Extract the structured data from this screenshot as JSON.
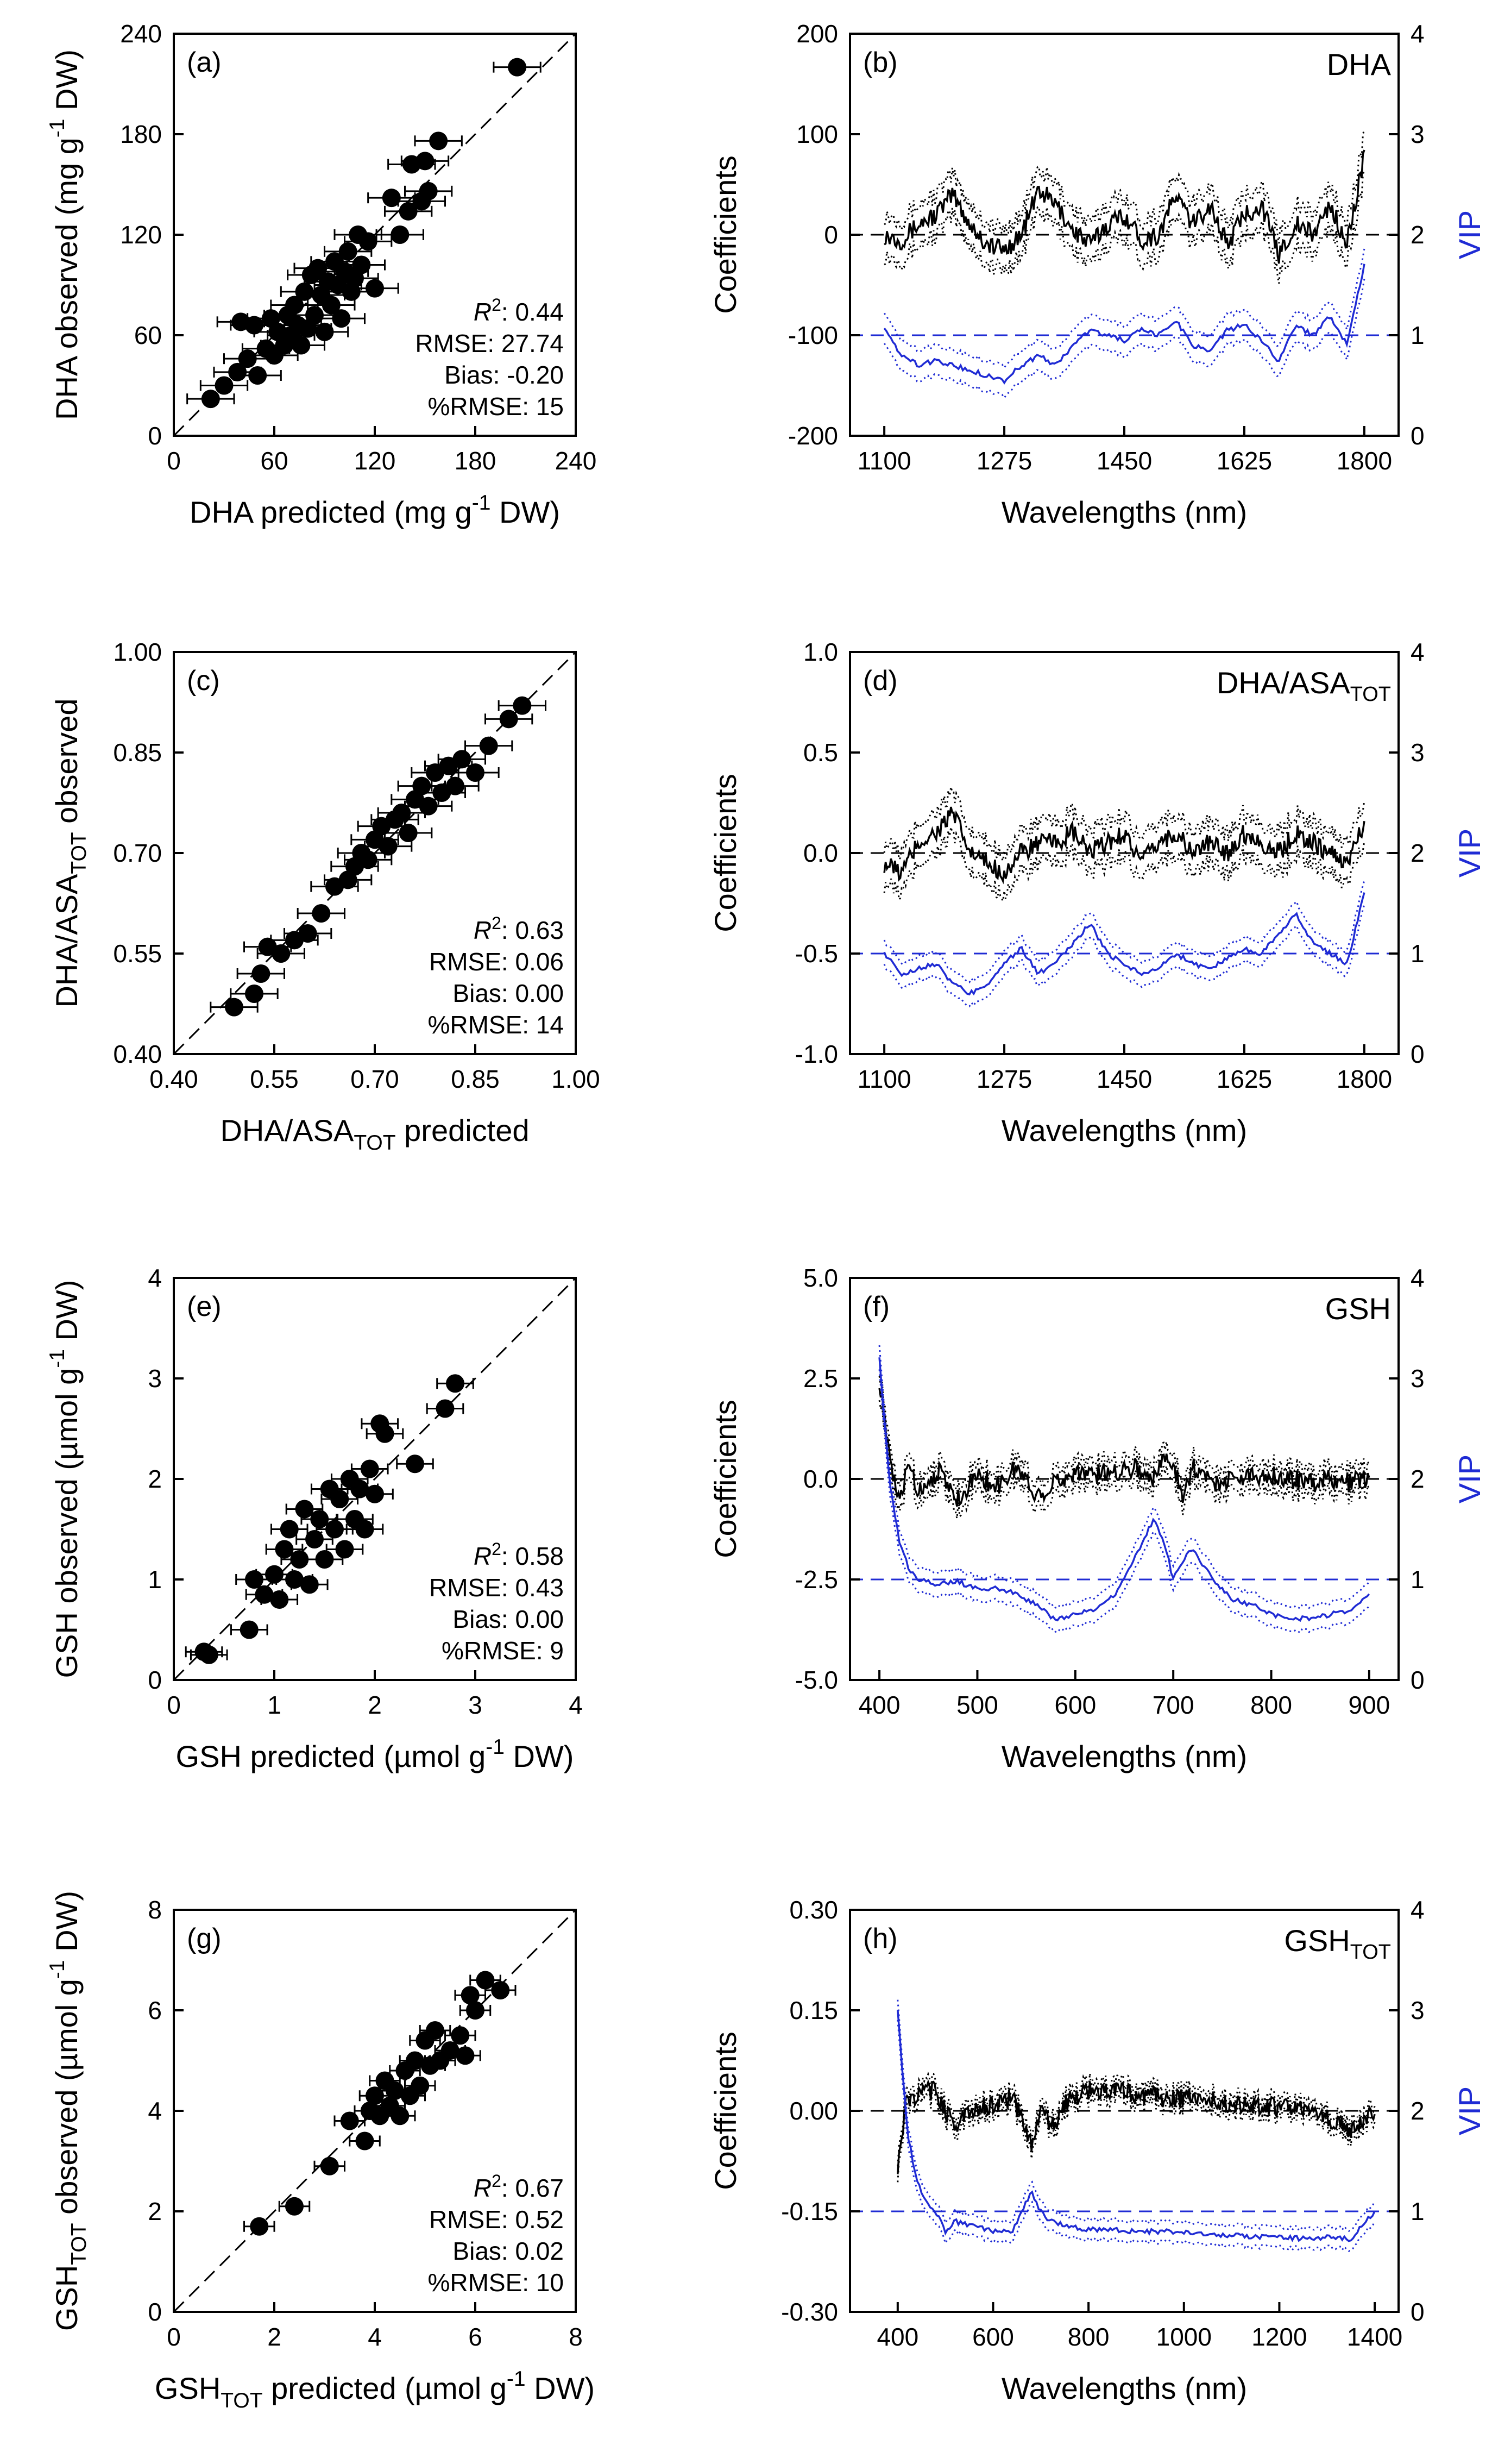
{
  "chart_data": [
    {
      "id": "a",
      "type": "scatter",
      "label": "(a)",
      "xlabel": {
        "main": "DHA predicted (mg g",
        "sup": "-1",
        "tail": " DW)"
      },
      "ylabel": {
        "main": "DHA observed (mg g",
        "sup": "-1",
        "tail": " DW)"
      },
      "xlim": [
        0,
        240
      ],
      "ylim": [
        0,
        240
      ],
      "xticks": [
        "0",
        "60",
        "120",
        "180",
        "240"
      ],
      "yticks": [
        "0",
        "60",
        "120",
        "180",
        "240"
      ],
      "stats": [
        "R2: 0.44",
        "RMSE: 27.74",
        "Bias: -0.20",
        "%RMSE: 15"
      ],
      "points": [
        [
          22,
          22
        ],
        [
          30,
          30
        ],
        [
          38,
          38
        ],
        [
          40,
          68
        ],
        [
          44,
          46
        ],
        [
          48,
          66
        ],
        [
          50,
          36
        ],
        [
          55,
          52
        ],
        [
          58,
          70
        ],
        [
          60,
          48
        ],
        [
          62,
          62
        ],
        [
          66,
          54
        ],
        [
          68,
          72
        ],
        [
          70,
          60
        ],
        [
          72,
          78
        ],
        [
          74,
          66
        ],
        [
          76,
          54
        ],
        [
          78,
          86
        ],
        [
          80,
          64
        ],
        [
          82,
          96
        ],
        [
          84,
          72
        ],
        [
          86,
          100
        ],
        [
          88,
          84
        ],
        [
          90,
          62
        ],
        [
          92,
          92
        ],
        [
          94,
          78
        ],
        [
          96,
          104
        ],
        [
          98,
          90
        ],
        [
          100,
          70
        ],
        [
          102,
          98
        ],
        [
          104,
          110
        ],
        [
          106,
          86
        ],
        [
          108,
          94
        ],
        [
          110,
          120
        ],
        [
          112,
          102
        ],
        [
          116,
          116
        ],
        [
          120,
          88
        ],
        [
          130,
          142
        ],
        [
          135,
          120
        ],
        [
          140,
          134
        ],
        [
          142,
          162
        ],
        [
          148,
          140
        ],
        [
          150,
          164
        ],
        [
          152,
          146
        ],
        [
          158,
          176
        ],
        [
          205,
          220
        ]
      ],
      "xerr": 14
    },
    {
      "id": "b",
      "type": "line",
      "label": "(b)",
      "name": {
        "main": "DHA",
        "sub": ""
      },
      "xlabel": "Wavelengths (nm)",
      "ylabel": "Coefficients",
      "y2label": "VIP",
      "xlim": [
        1050,
        1850
      ],
      "ylim": [
        -200,
        200
      ],
      "y2lim": [
        0,
        4
      ],
      "xticks": [
        "1100",
        "1275",
        "1450",
        "1625",
        "1800"
      ],
      "yticks": [
        "-200",
        "-100",
        "0",
        "100",
        "200"
      ],
      "y2ticks": [
        "0",
        "1",
        "2",
        "3",
        "4"
      ],
      "x": [
        1100,
        1125,
        1150,
        1175,
        1200,
        1225,
        1250,
        1275,
        1300,
        1325,
        1350,
        1375,
        1400,
        1425,
        1450,
        1475,
        1500,
        1525,
        1550,
        1575,
        1600,
        1625,
        1650,
        1675,
        1700,
        1725,
        1750,
        1775,
        1800
      ],
      "series": [
        {
          "name": "Coefficients",
          "axis": "left",
          "values": [
            0,
            -5,
            10,
            20,
            40,
            10,
            -10,
            -15,
            0,
            45,
            30,
            5,
            -10,
            10,
            20,
            -5,
            0,
            40,
            10,
            30,
            -10,
            20,
            30,
            -20,
            10,
            0,
            30,
            -10,
            80
          ],
          "band": 20
        },
        {
          "name": "VIP",
          "axis": "right",
          "values": [
            1.05,
            0.8,
            0.7,
            0.75,
            0.7,
            0.65,
            0.6,
            0.55,
            0.7,
            0.8,
            0.7,
            0.9,
            1.05,
            1.0,
            0.95,
            1.05,
            1.0,
            1.15,
            0.9,
            0.85,
            1.05,
            1.1,
            0.95,
            0.75,
            1.1,
            1.0,
            1.2,
            0.9,
            1.7
          ],
          "band": 0.15
        }
      ],
      "refline_left": 0,
      "refline_right": 1
    },
    {
      "id": "c",
      "type": "scatter",
      "label": "(c)",
      "xlabel": {
        "main": "DHA/ASA",
        "sub": "TOT",
        "tail": " predicted"
      },
      "ylabel": {
        "main": "DHA/ASA",
        "sub": "TOT",
        "tail": " observed"
      },
      "xlim": [
        0.4,
        1.0
      ],
      "ylim": [
        0.4,
        1.0
      ],
      "xticks": [
        "0.40",
        "0.55",
        "0.70",
        "0.85",
        "1.00"
      ],
      "yticks": [
        "0.40",
        "0.55",
        "0.70",
        "0.85",
        "1.00"
      ],
      "stats": [
        "R2: 0.63",
        "RMSE: 0.06",
        "Bias: 0.00",
        "%RMSE: 14"
      ],
      "points": [
        [
          0.49,
          0.47
        ],
        [
          0.52,
          0.49
        ],
        [
          0.53,
          0.52
        ],
        [
          0.54,
          0.56
        ],
        [
          0.56,
          0.55
        ],
        [
          0.58,
          0.57
        ],
        [
          0.6,
          0.58
        ],
        [
          0.62,
          0.61
        ],
        [
          0.64,
          0.65
        ],
        [
          0.66,
          0.66
        ],
        [
          0.67,
          0.68
        ],
        [
          0.68,
          0.7
        ],
        [
          0.69,
          0.69
        ],
        [
          0.7,
          0.72
        ],
        [
          0.71,
          0.74
        ],
        [
          0.72,
          0.71
        ],
        [
          0.73,
          0.75
        ],
        [
          0.74,
          0.76
        ],
        [
          0.75,
          0.73
        ],
        [
          0.76,
          0.78
        ],
        [
          0.77,
          0.8
        ],
        [
          0.78,
          0.77
        ],
        [
          0.79,
          0.82
        ],
        [
          0.8,
          0.79
        ],
        [
          0.81,
          0.83
        ],
        [
          0.82,
          0.8
        ],
        [
          0.83,
          0.84
        ],
        [
          0.85,
          0.82
        ],
        [
          0.87,
          0.86
        ],
        [
          0.9,
          0.9
        ],
        [
          0.92,
          0.92
        ]
      ],
      "xerr": 0.035
    },
    {
      "id": "d",
      "type": "line",
      "label": "(d)",
      "name": {
        "main": "DHA/ASA",
        "sub": "TOT"
      },
      "xlabel": "Wavelengths (nm)",
      "ylabel": "Coefficients",
      "y2label": "VIP",
      "xlim": [
        1050,
        1850
      ],
      "ylim": [
        -1.0,
        1.0
      ],
      "y2lim": [
        0,
        4
      ],
      "xticks": [
        "1100",
        "1275",
        "1450",
        "1625",
        "1800"
      ],
      "yticks": [
        "-1.0",
        "-0.5",
        "0.0",
        "0.5",
        "1.0"
      ],
      "y2ticks": [
        "0",
        "1",
        "2",
        "3",
        "4"
      ],
      "x": [
        1100,
        1125,
        1150,
        1175,
        1200,
        1225,
        1250,
        1275,
        1300,
        1325,
        1350,
        1375,
        1400,
        1425,
        1450,
        1475,
        1500,
        1525,
        1550,
        1575,
        1600,
        1625,
        1650,
        1675,
        1700,
        1725,
        1750,
        1775,
        1800
      ],
      "series": [
        {
          "name": "Coefficients",
          "axis": "left",
          "values": [
            -0.05,
            -0.1,
            0.05,
            0.1,
            0.2,
            0.0,
            -0.05,
            -0.1,
            0.0,
            0.05,
            0.05,
            0.1,
            0.0,
            0.05,
            0.1,
            -0.05,
            0.05,
            0.1,
            0.0,
            0.05,
            0.0,
            0.1,
            0.05,
            0.0,
            0.1,
            0.05,
            0.0,
            -0.05,
            0.15
          ],
          "band": 0.1
        },
        {
          "name": "VIP",
          "axis": "right",
          "values": [
            1.0,
            0.8,
            0.85,
            0.9,
            0.7,
            0.6,
            0.7,
            0.9,
            1.05,
            0.8,
            0.9,
            1.1,
            1.3,
            1.0,
            0.9,
            0.8,
            0.85,
            1.0,
            0.9,
            0.85,
            0.95,
            1.05,
            1.0,
            1.2,
            1.4,
            1.1,
            1.0,
            0.9,
            1.6
          ],
          "band": 0.12
        }
      ],
      "refline_left": 0,
      "refline_right": 1
    },
    {
      "id": "e",
      "type": "scatter",
      "label": "(e)",
      "xlabel": {
        "main": "GSH predicted (µmol g",
        "sup": "-1",
        "tail": " DW)"
      },
      "ylabel": {
        "main": "GSH observed (µmol g",
        "sup": "-1",
        "tail": " DW)"
      },
      "xlim": [
        0,
        4
      ],
      "ylim": [
        0,
        4
      ],
      "xticks": [
        "0",
        "1",
        "2",
        "3",
        "4"
      ],
      "yticks": [
        "0",
        "1",
        "2",
        "3",
        "4"
      ],
      "stats": [
        "R2: 0.58",
        "RMSE: 0.43",
        "Bias: 0.00",
        "%RMSE: 9"
      ],
      "points": [
        [
          0.3,
          0.28
        ],
        [
          0.35,
          0.25
        ],
        [
          0.75,
          0.5
        ],
        [
          0.8,
          1.0
        ],
        [
          0.9,
          0.85
        ],
        [
          1.0,
          1.05
        ],
        [
          1.05,
          0.8
        ],
        [
          1.1,
          1.3
        ],
        [
          1.15,
          1.5
        ],
        [
          1.2,
          1.0
        ],
        [
          1.25,
          1.2
        ],
        [
          1.3,
          1.7
        ],
        [
          1.35,
          0.95
        ],
        [
          1.4,
          1.4
        ],
        [
          1.45,
          1.6
        ],
        [
          1.5,
          1.2
        ],
        [
          1.55,
          1.9
        ],
        [
          1.6,
          1.5
        ],
        [
          1.65,
          1.8
        ],
        [
          1.7,
          1.3
        ],
        [
          1.75,
          2.0
        ],
        [
          1.8,
          1.6
        ],
        [
          1.85,
          1.9
        ],
        [
          1.9,
          1.5
        ],
        [
          1.95,
          2.1
        ],
        [
          2.0,
          1.85
        ],
        [
          2.05,
          2.55
        ],
        [
          2.1,
          2.45
        ],
        [
          2.4,
          2.15
        ],
        [
          2.7,
          2.7
        ],
        [
          2.8,
          2.95
        ]
      ],
      "xerr": 0.18
    },
    {
      "id": "f",
      "type": "line",
      "label": "(f)",
      "name": {
        "main": "GSH",
        "sub": ""
      },
      "xlabel": "Wavelengths (nm)",
      "ylabel": "Coefficients",
      "y2label": "VIP",
      "xlim": [
        370,
        930
      ],
      "ylim": [
        -5.0,
        5.0
      ],
      "y2lim": [
        0,
        4
      ],
      "xticks": [
        "400",
        "500",
        "600",
        "700",
        "800",
        "900"
      ],
      "xtick_values": [
        400,
        500,
        600,
        700,
        800,
        900
      ],
      "yticks": [
        "-5.0",
        "-2.5",
        "0.0",
        "2.5",
        "5.0"
      ],
      "y2ticks": [
        "0",
        "1",
        "2",
        "3",
        "4"
      ],
      "x": [
        400,
        410,
        420,
        430,
        440,
        460,
        480,
        500,
        520,
        540,
        560,
        580,
        600,
        620,
        640,
        660,
        680,
        690,
        700,
        710,
        720,
        740,
        760,
        780,
        800,
        820,
        840,
        860,
        880,
        900
      ],
      "series": [
        {
          "name": "Coefficients",
          "axis": "left",
          "values": [
            2.5,
            0.5,
            -0.6,
            0.4,
            -0.3,
            0.2,
            -0.5,
            0.1,
            -0.2,
            0.3,
            -0.4,
            -0.1,
            0.2,
            0.1,
            0.2,
            0.3,
            0.0,
            0.5,
            0.4,
            -0.4,
            0.3,
            -0.1,
            0.0,
            0.1,
            0.1,
            0.0,
            -0.1,
            0.0,
            -0.1,
            0.05
          ],
          "band": 0.3
        },
        {
          "name": "VIP",
          "axis": "right",
          "values": [
            3.2,
            2.0,
            1.4,
            1.1,
            1.0,
            0.95,
            0.98,
            0.9,
            0.92,
            0.85,
            0.75,
            0.6,
            0.65,
            0.7,
            0.85,
            1.2,
            1.6,
            1.4,
            1.0,
            1.2,
            1.3,
            1.0,
            0.8,
            0.75,
            0.65,
            0.6,
            0.62,
            0.65,
            0.7,
            0.85
          ],
          "band": 0.12
        }
      ],
      "refline_left": 0,
      "refline_right": 1
    },
    {
      "id": "g",
      "type": "scatter",
      "label": "(g)",
      "xlabel": {
        "main": "GSH",
        "sub": "TOT",
        "tail": " predicted (µmol g",
        "sup": "-1",
        "tail2": " DW)"
      },
      "ylabel": {
        "main": "GSH",
        "sub": "TOT",
        "tail": " observed (µmol g",
        "sup": "-1",
        "tail2": " DW)"
      },
      "xlim": [
        0,
        8
      ],
      "ylim": [
        0,
        8
      ],
      "xticks": [
        "0",
        "2",
        "4",
        "6",
        "8"
      ],
      "yticks": [
        "0",
        "2",
        "4",
        "6",
        "8"
      ],
      "stats": [
        "R2: 0.67",
        "RMSE: 0.52",
        "Bias: 0.02",
        "%RMSE: 10"
      ],
      "points": [
        [
          1.7,
          1.7
        ],
        [
          2.4,
          2.1
        ],
        [
          3.1,
          2.9
        ],
        [
          3.5,
          3.8
        ],
        [
          3.8,
          3.4
        ],
        [
          3.9,
          4.0
        ],
        [
          4.0,
          4.3
        ],
        [
          4.1,
          3.9
        ],
        [
          4.2,
          4.6
        ],
        [
          4.3,
          4.1
        ],
        [
          4.4,
          4.4
        ],
        [
          4.5,
          3.9
        ],
        [
          4.6,
          4.8
        ],
        [
          4.7,
          4.3
        ],
        [
          4.8,
          5.0
        ],
        [
          4.9,
          4.5
        ],
        [
          5.0,
          5.4
        ],
        [
          5.1,
          4.9
        ],
        [
          5.2,
          5.6
        ],
        [
          5.3,
          5.0
        ],
        [
          5.5,
          5.2
        ],
        [
          5.7,
          5.5
        ],
        [
          5.8,
          5.1
        ],
        [
          5.9,
          6.3
        ],
        [
          6.0,
          6.0
        ],
        [
          6.2,
          6.6
        ],
        [
          6.5,
          6.4
        ]
      ],
      "xerr": 0.3
    },
    {
      "id": "h",
      "type": "line",
      "label": "(h)",
      "name": {
        "main": "GSH",
        "sub": "TOT"
      },
      "xlabel": "Wavelengths (nm)",
      "ylabel": "Coefficients",
      "y2label": "VIP",
      "xlim": [
        300,
        1450
      ],
      "ylim": [
        -0.3,
        0.3
      ],
      "y2lim": [
        0,
        4
      ],
      "xticks": [
        "400",
        "600",
        "800",
        "1000",
        "1200",
        "1400"
      ],
      "xtick_values": [
        400,
        600,
        800,
        1000,
        1200,
        1400
      ],
      "yticks": [
        "-0.30",
        "-0.15",
        "0.00",
        "0.15",
        "0.30"
      ],
      "y2ticks": [
        "0",
        "1",
        "2",
        "3",
        "4"
      ],
      "x": [
        400,
        420,
        440,
        460,
        480,
        500,
        520,
        560,
        600,
        640,
        680,
        700,
        720,
        760,
        800,
        850,
        900,
        950,
        1000,
        1050,
        1100,
        1150,
        1200,
        1250,
        1300,
        1350,
        1400
      ],
      "series": [
        {
          "name": "Coefficients",
          "axis": "left",
          "values": [
            -0.08,
            0.02,
            0.02,
            0.03,
            0.03,
            0.0,
            -0.02,
            0.0,
            0.01,
            0.02,
            -0.05,
            0.01,
            -0.03,
            0.02,
            0.03,
            0.03,
            0.025,
            0.02,
            0.02,
            0.015,
            0.01,
            0.01,
            0.005,
            0.0,
            -0.01,
            -0.03,
            0.0
          ],
          "band": 0.012
        },
        {
          "name": "VIP",
          "axis": "right",
          "values": [
            3.0,
            1.8,
            1.3,
            1.1,
            1.0,
            0.8,
            0.9,
            0.85,
            0.8,
            0.8,
            1.2,
            1.0,
            0.9,
            0.85,
            0.82,
            0.82,
            0.8,
            0.8,
            0.8,
            0.78,
            0.76,
            0.75,
            0.74,
            0.73,
            0.74,
            0.72,
            1.0
          ],
          "band": 0.1
        }
      ],
      "refline_left": 0,
      "refline_right": 1
    }
  ]
}
